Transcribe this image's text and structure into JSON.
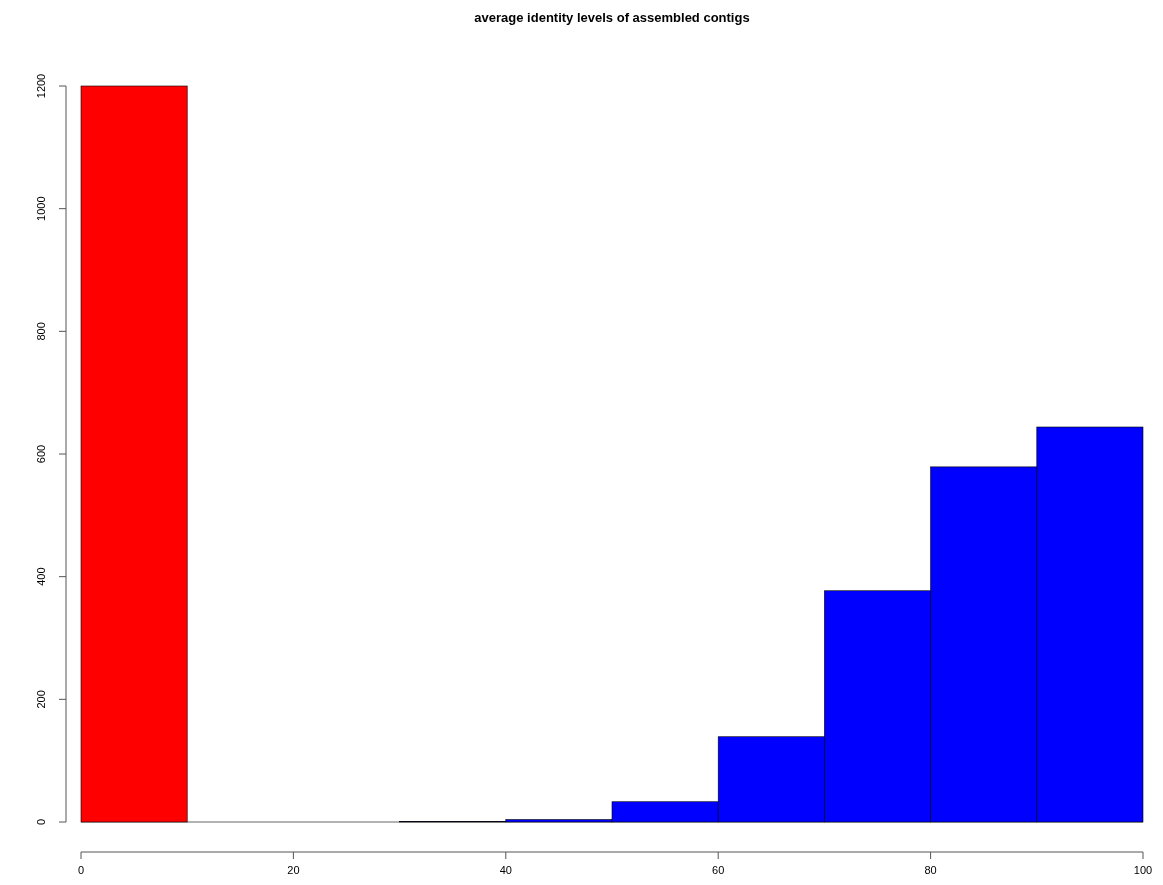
{
  "chart_data": {
    "type": "histogram",
    "title": "average identity levels of assembled contigs",
    "bins": [
      0,
      10,
      20,
      30,
      40,
      50,
      60,
      70,
      80,
      90,
      100
    ],
    "values": [
      1200,
      0,
      0,
      1,
      4,
      33,
      139,
      377,
      579,
      644
    ],
    "colors": [
      "#ff0000",
      "#0000ff",
      "#0000ff",
      "#0000ff",
      "#0000ff",
      "#0000ff",
      "#0000ff",
      "#0000ff",
      "#0000ff",
      "#0000ff"
    ],
    "xlim": [
      0,
      100
    ],
    "xticks": [
      0,
      20,
      40,
      60,
      80,
      100
    ],
    "ylim": [
      0,
      1200
    ],
    "yticks": [
      0,
      200,
      400,
      600,
      800,
      1000,
      1200
    ],
    "grid": false
  }
}
